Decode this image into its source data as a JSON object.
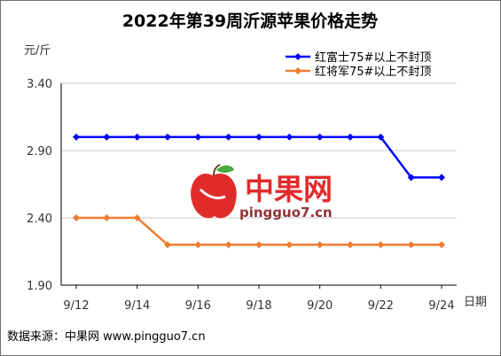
{
  "chart_data": {
    "type": "line",
    "title": "2022年第39周沂源苹果价格走势",
    "ylabel": "元/斤",
    "xlabel": "日期",
    "ylim": [
      1.9,
      3.4
    ],
    "yticks": [
      "1.90",
      "2.40",
      "2.90",
      "3.40"
    ],
    "x_dates": [
      "9/12",
      "9/13",
      "9/14",
      "9/15",
      "9/16",
      "9/17",
      "9/18",
      "9/19",
      "9/20",
      "9/21",
      "9/22",
      "9/23",
      "9/24"
    ],
    "x_tick_labels": [
      "9/12",
      "9/14",
      "9/16",
      "9/18",
      "9/20",
      "9/22",
      "9/24"
    ],
    "grid": "horizontal",
    "legend": "top-right",
    "series": [
      {
        "name": "红富士75#以上不封顶",
        "color": "#0000ff",
        "marker": "diamond",
        "values": [
          3.0,
          3.0,
          3.0,
          3.0,
          3.0,
          3.0,
          3.0,
          3.0,
          3.0,
          3.0,
          3.0,
          2.7,
          2.7
        ]
      },
      {
        "name": "红将军75#以上不封顶",
        "color": "#ed7d31",
        "marker": "diamond",
        "values": [
          2.4,
          2.4,
          2.4,
          2.2,
          2.2,
          2.2,
          2.2,
          2.2,
          2.2,
          2.2,
          2.2,
          2.2,
          2.2
        ]
      }
    ]
  },
  "watermark": {
    "name": "中果网",
    "url": "pingguo7.cn"
  },
  "footer": {
    "source": "数据来源：中果网 www.pingguo7.cn"
  }
}
